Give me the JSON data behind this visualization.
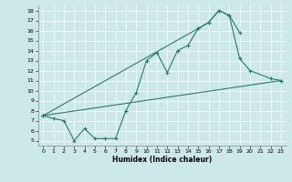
{
  "xlabel": "Humidex (Indice chaleur)",
  "background_color": "#cce8e8",
  "line_color": "#2a7a6a",
  "xlim": [
    -0.5,
    23.5
  ],
  "ylim": [
    4.5,
    18.5
  ],
  "xticks": [
    0,
    1,
    2,
    3,
    4,
    5,
    6,
    7,
    8,
    9,
    10,
    11,
    12,
    13,
    14,
    15,
    16,
    17,
    18,
    19,
    20,
    21,
    22,
    23
  ],
  "yticks": [
    5,
    6,
    7,
    8,
    9,
    10,
    11,
    12,
    13,
    14,
    15,
    16,
    17,
    18
  ],
  "line1_x": [
    0,
    1,
    2,
    3,
    4,
    5,
    6,
    7,
    8,
    9,
    10,
    11,
    12,
    13,
    14,
    15,
    16,
    17,
    18,
    19
  ],
  "line1_y": [
    7.5,
    7.2,
    7.0,
    5.0,
    6.2,
    5.2,
    5.2,
    5.2,
    8.0,
    9.8,
    13.0,
    13.8,
    11.8,
    14.0,
    14.5,
    16.2,
    16.8,
    18.0,
    17.5,
    15.8
  ],
  "line2_x": [
    0,
    15,
    16,
    17,
    18,
    19,
    20,
    22,
    23
  ],
  "line2_y": [
    7.5,
    16.2,
    16.8,
    18.0,
    17.5,
    13.2,
    12.0,
    11.2,
    11.0
  ],
  "line3_x": [
    0,
    23
  ],
  "line3_y": [
    7.5,
    11.0
  ]
}
